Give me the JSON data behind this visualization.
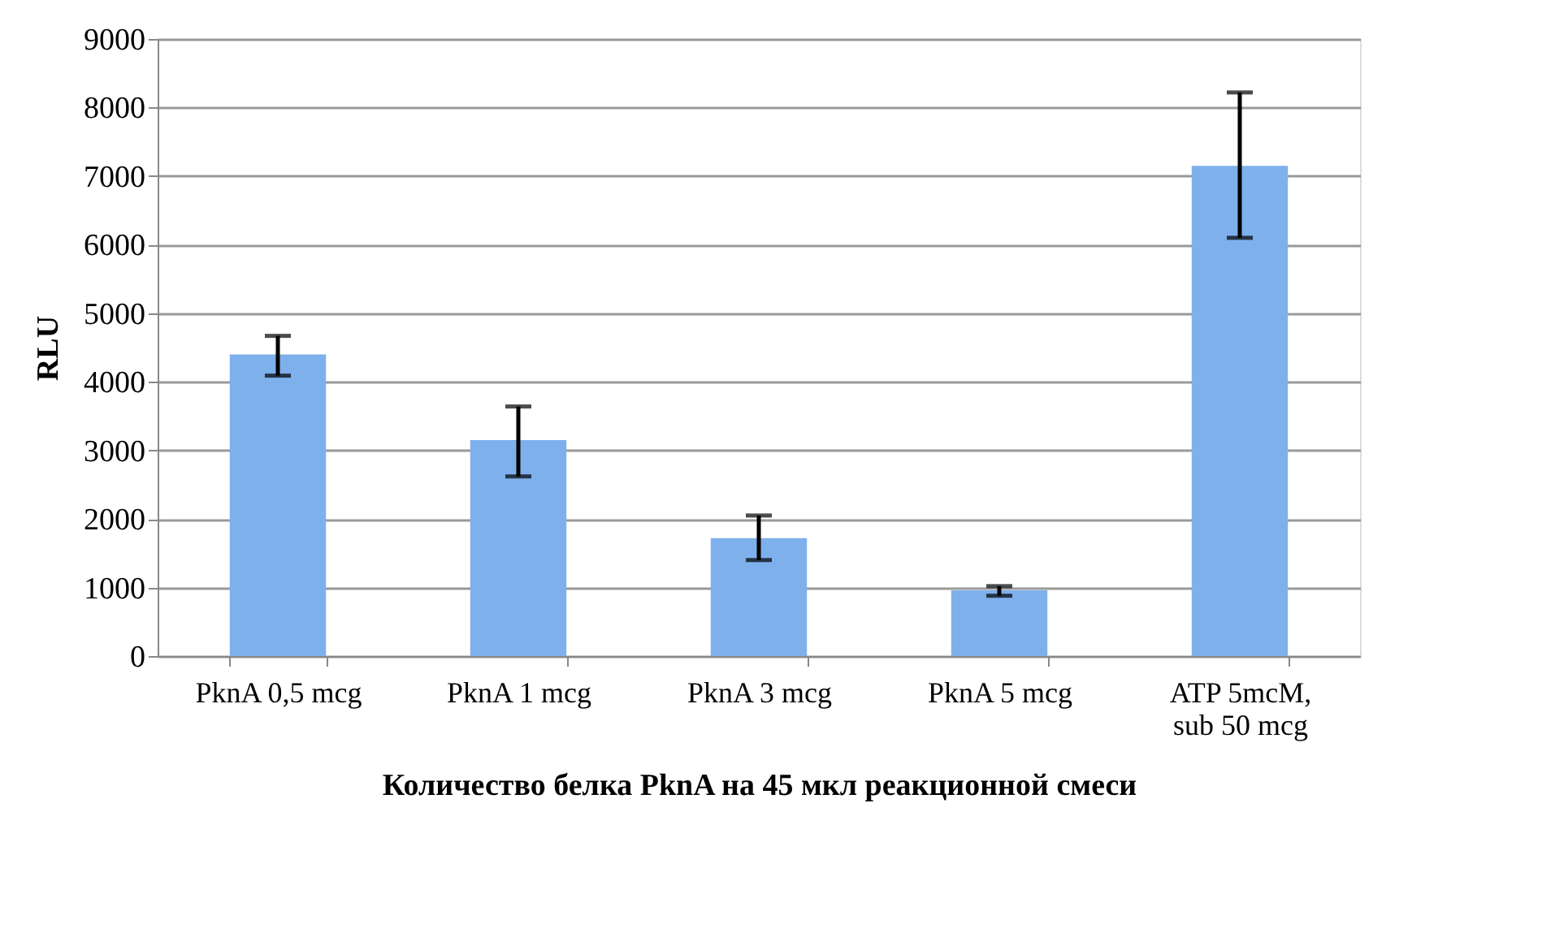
{
  "chart_data": {
    "type": "bar",
    "categories": [
      "PknA 0,5 mcg",
      "PknA 1 mcg",
      "PknA 3 mcg",
      "PknA 5 mcg",
      "ATP  5mcM,\nsub 50 mcg"
    ],
    "values": [
      4400,
      3150,
      1720,
      960,
      7150
    ],
    "errors": [
      [
        4090,
        4670
      ],
      [
        2620,
        3640
      ],
      [
        1400,
        2050
      ],
      [
        880,
        1020
      ],
      [
        6100,
        8220
      ]
    ],
    "color": "#7eb0ec",
    "ylim": [
      0,
      9000
    ],
    "yticks": [
      0,
      1000,
      2000,
      3000,
      4000,
      5000,
      6000,
      7000,
      8000,
      9000
    ],
    "ylabel": "RLU",
    "xlabel": "Количество белка PknA на 45 мкл реакционной смеси",
    "grid": "y"
  }
}
